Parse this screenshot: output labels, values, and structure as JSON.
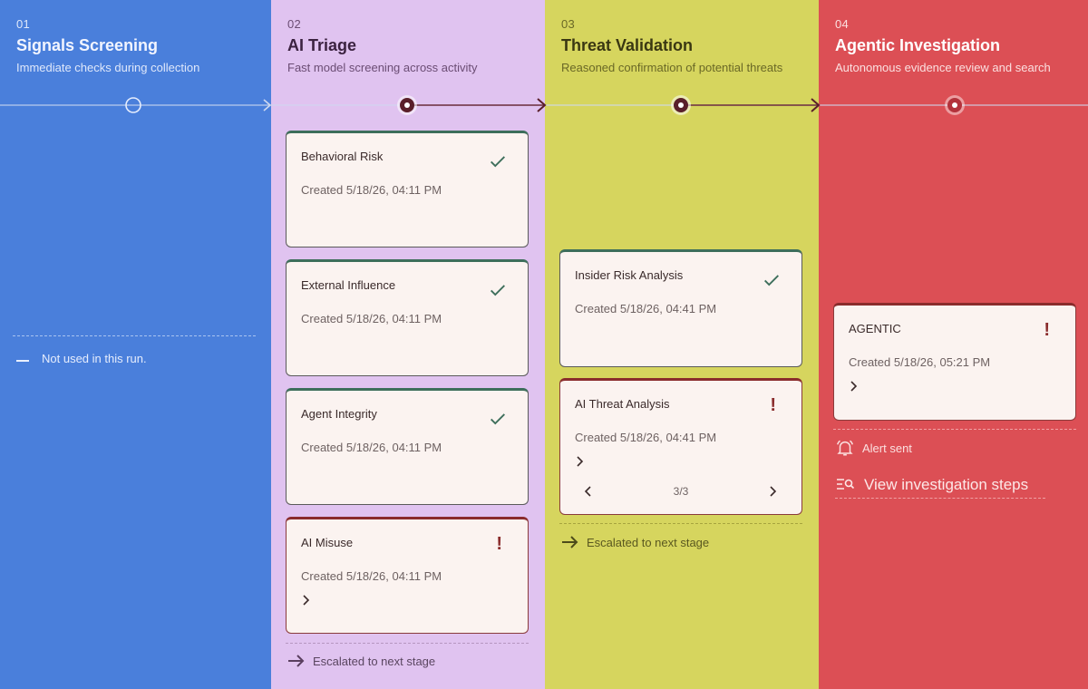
{
  "stages": [
    {
      "num": "01",
      "title": "Signals Screening",
      "subtitle": "Immediate checks during collection",
      "note": "Not used in this run."
    },
    {
      "num": "02",
      "title": "AI Triage",
      "subtitle": "Fast model screening across activity",
      "escalated": "Escalated to next stage"
    },
    {
      "num": "03",
      "title": "Threat Validation",
      "subtitle": "Reasoned confirmation of potential threats",
      "escalated": "Escalated to next stage"
    },
    {
      "num": "04",
      "title": "Agentic Investigation",
      "subtitle": "Autonomous evidence review and search",
      "alert_sent": "Alert sent",
      "view_steps": "View investigation steps"
    }
  ],
  "triage_cards": [
    {
      "title": "Behavioral Risk",
      "created": "Created 5/18/26, 04:11 PM",
      "status": "pass"
    },
    {
      "title": "External Influence",
      "created": "Created 5/18/26, 04:11 PM",
      "status": "pass"
    },
    {
      "title": "Agent Integrity",
      "created": "Created 5/18/26, 04:11 PM",
      "status": "pass"
    },
    {
      "title": "AI Misuse",
      "created": "Created 5/18/26, 04:11 PM",
      "status": "flagged"
    }
  ],
  "validation_cards": [
    {
      "title": "Insider Risk Analysis",
      "created": "Created 5/18/26, 04:41 PM",
      "status": "pass"
    },
    {
      "title": "AI Threat Analysis",
      "created": "Created 5/18/26, 04:41 PM",
      "status": "flagged",
      "pager": "3/3"
    }
  ],
  "agentic_cards": [
    {
      "title": "AGENTIC",
      "created": "Created 5/18/26, 05:21 PM",
      "status": "flagged"
    }
  ],
  "icons": {
    "pass": "check-icon",
    "flagged": "exclamation-icon",
    "expand": "chevron-right-icon",
    "escalate": "arrow-right-icon",
    "alert": "bell-icon",
    "steps": "list-search-icon",
    "note": "dash-icon"
  },
  "colors": {
    "stage1": "#4a7fdb",
    "stage2": "#e0c3f0",
    "stage3": "#d6d55e",
    "stage4": "#dc4f55",
    "pass": "#3d6e5b",
    "flagged": "#8a2c2c",
    "card_bg": "#fbf3f0"
  }
}
